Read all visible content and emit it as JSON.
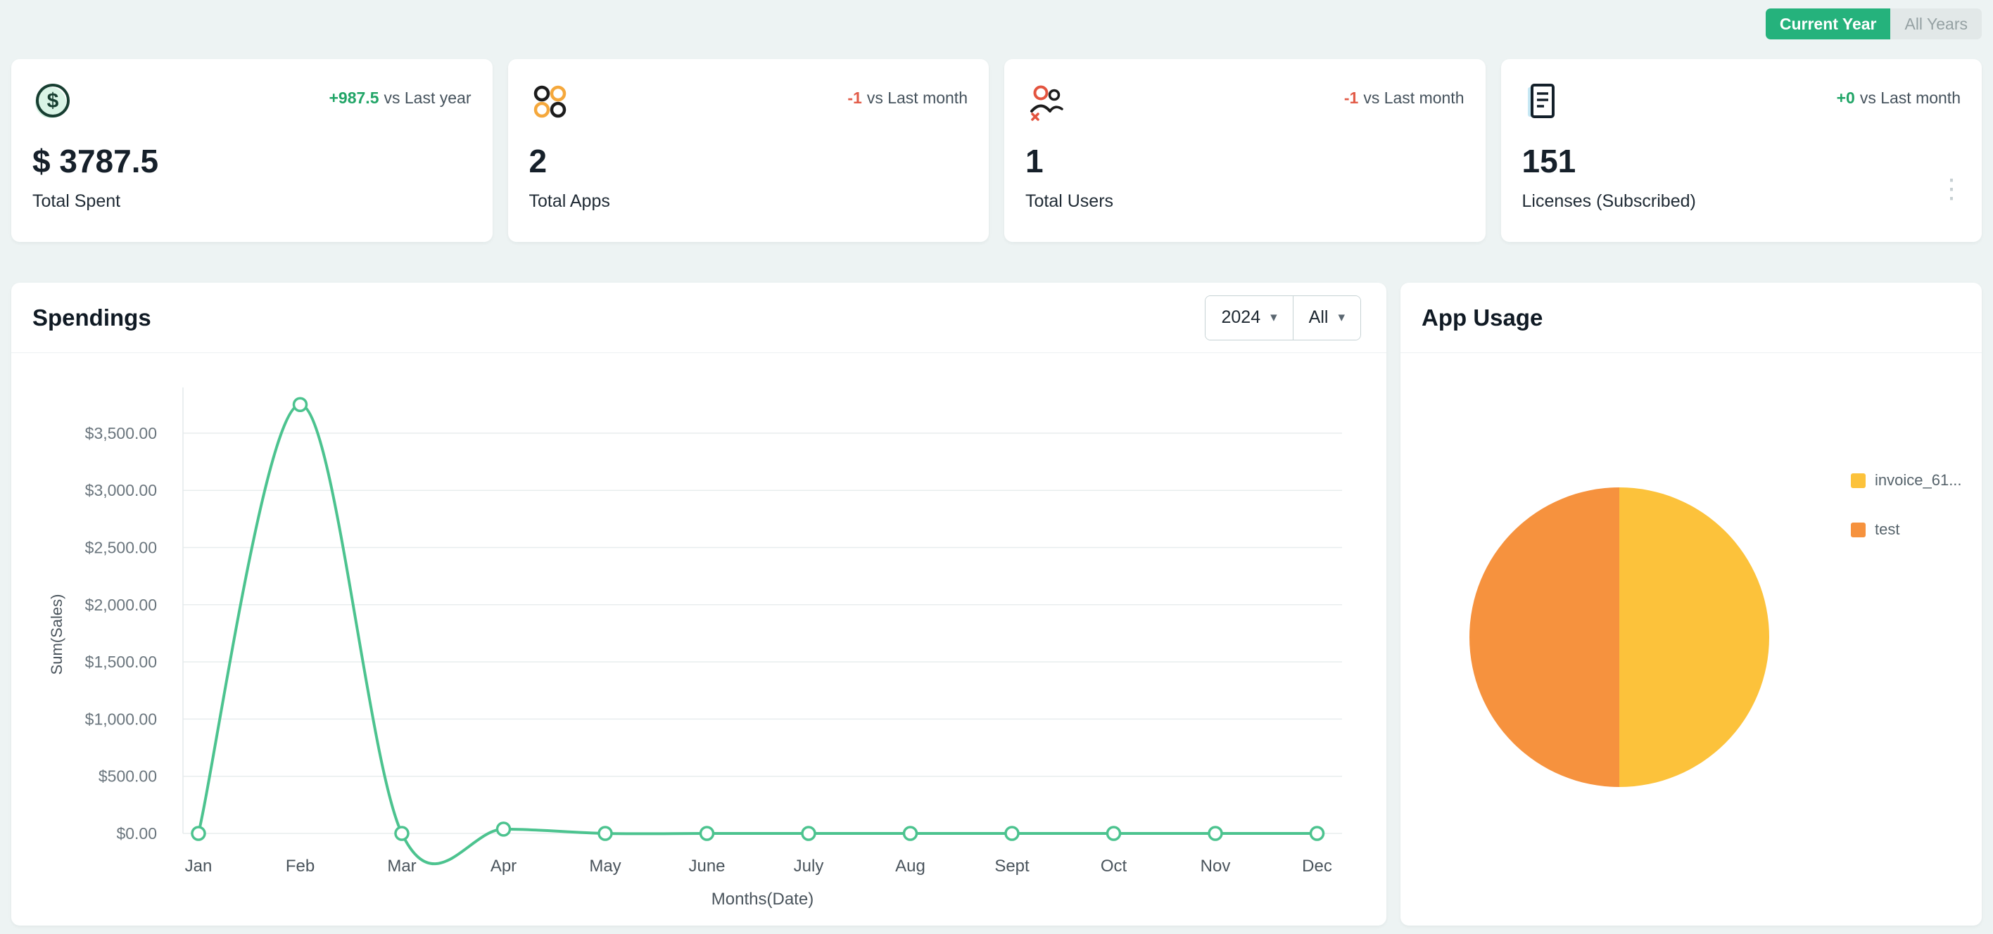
{
  "topbar": {
    "current_year_label": "Current Year",
    "all_years_label": "All Years"
  },
  "stats": [
    {
      "icon": "dollar-icon",
      "delta": "+987.5",
      "delta_color": "#21a567",
      "delta_suffix": "vs Last year",
      "value": "$ 3787.5",
      "label": "Total Spent"
    },
    {
      "icon": "apps-icon",
      "delta": "-1",
      "delta_color": "#e25c49",
      "delta_suffix": "vs Last month",
      "value": "2",
      "label": "Total Apps"
    },
    {
      "icon": "users-icon",
      "delta": "-1",
      "delta_color": "#e25c49",
      "delta_suffix": "vs Last month",
      "value": "1",
      "label": "Total Users"
    },
    {
      "icon": "licenses-icon",
      "delta": "+0",
      "delta_color": "#21a567",
      "delta_suffix": "vs Last month",
      "value": "151",
      "label": "Licenses (Subscribed)"
    }
  ],
  "spendings": {
    "title": "Spendings",
    "year_filter": "2024",
    "scope_filter": "All"
  },
  "app_usage": {
    "title": "App Usage"
  },
  "chart_data": [
    {
      "type": "line",
      "title": "Spendings",
      "x": [
        "Jan",
        "Feb",
        "Mar",
        "Apr",
        "May",
        "June",
        "July",
        "Aug",
        "Sept",
        "Oct",
        "Nov",
        "Dec"
      ],
      "series": [
        {
          "name": "Sum(Sales)",
          "color": "#4cc38f",
          "values": [
            0,
            3750,
            0,
            37.5,
            0,
            0,
            0,
            0,
            0,
            0,
            0,
            0
          ]
        }
      ],
      "xlabel": "Months(Date)",
      "ylabel": "Sum(Sales)",
      "ylim": [
        0,
        3900
      ],
      "yticks": [
        0,
        500,
        1000,
        1500,
        2000,
        2500,
        3000,
        3500
      ],
      "ytick_labels": [
        "$0.00",
        "$500.00",
        "$1,000.00",
        "$1,500.00",
        "$2,000.00",
        "$2,500.00",
        "$3,000.00",
        "$3,500.00"
      ],
      "grid": true,
      "smooth": true,
      "point_markers": true,
      "legend_position": "none"
    },
    {
      "type": "pie",
      "title": "App Usage",
      "slices": [
        {
          "label": "invoice_61...",
          "value": 50,
          "color": "#fcc23b"
        },
        {
          "label": "test",
          "value": 50,
          "color": "#f6923e"
        }
      ],
      "legend_position": "right"
    }
  ]
}
